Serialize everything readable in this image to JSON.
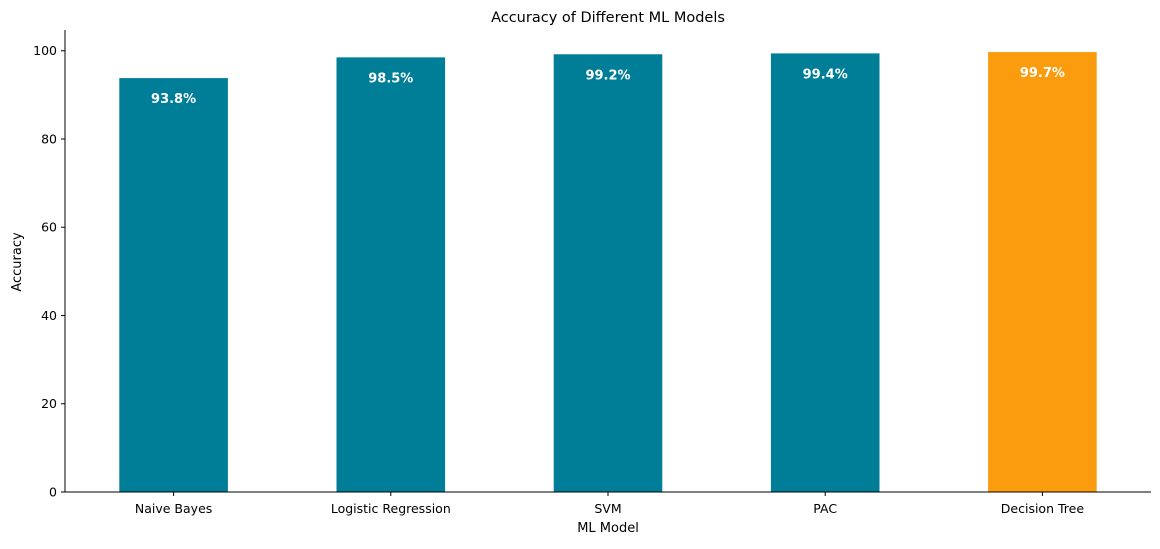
{
  "chart_data": {
    "type": "bar",
    "title": "Accuracy of Different ML Models",
    "xlabel": "ML Model",
    "ylabel": "Accuracy",
    "categories": [
      "Naive Bayes",
      "Logistic Regression",
      "SVM",
      "PAC",
      "Decision Tree"
    ],
    "values": [
      93.8,
      98.5,
      99.2,
      99.4,
      99.7
    ],
    "data_labels": [
      "93.8%",
      "98.5%",
      "99.2%",
      "99.4%",
      "99.7%"
    ],
    "ylim": [
      0,
      104.7
    ],
    "yticks": [
      0,
      20,
      40,
      60,
      80,
      100
    ],
    "ytick_labels": [
      "0",
      "20",
      "40",
      "60",
      "80",
      "100"
    ],
    "grid": false,
    "highlight_index": 4,
    "colors": {
      "bar": "#007e97",
      "highlight": "#fb9b0e",
      "data_label": "#ffffff",
      "axis": "#000000",
      "text": "#000000"
    }
  }
}
